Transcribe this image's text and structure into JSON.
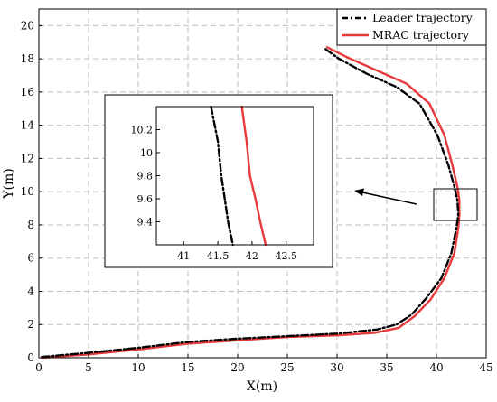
{
  "chart_data": {
    "type": "line",
    "xlabel": "X(m)",
    "ylabel": "Y(m)",
    "xlim": [
      0,
      45
    ],
    "ylim": [
      0,
      21
    ],
    "xticks": [
      0,
      5,
      10,
      15,
      20,
      25,
      30,
      35,
      40,
      45
    ],
    "yticks": [
      0,
      2,
      4,
      6,
      8,
      10,
      12,
      14,
      16,
      18,
      20
    ],
    "grid": true,
    "legend_position": "top-right",
    "series": [
      {
        "name": "Leader trajectory",
        "color": "#000000",
        "style": "dash-dot",
        "x": [
          0.3,
          5,
          10,
          15,
          20,
          25,
          30,
          34,
          36,
          37.5,
          39,
          40.5,
          41.5,
          42,
          42.2,
          42.1,
          41.8,
          41.2,
          40.1,
          38.3,
          36,
          33,
          30.2,
          28.8
        ],
        "y": [
          0.05,
          0.3,
          0.6,
          0.95,
          1.15,
          1.3,
          1.45,
          1.7,
          2.0,
          2.6,
          3.6,
          4.8,
          6.3,
          7.8,
          8.6,
          9.5,
          10.3,
          11.6,
          13.4,
          15.3,
          16.3,
          17.1,
          18.0,
          18.6
        ]
      },
      {
        "name": "MRAC trajectory",
        "color": "#e8393b",
        "style": "solid",
        "x": [
          0.3,
          5,
          10,
          15,
          20,
          25,
          30,
          33.8,
          36.2,
          37.8,
          39.4,
          40.8,
          41.8,
          42.2,
          42.3,
          42.3,
          42.1,
          41.6,
          40.8,
          39.3,
          37,
          34,
          31,
          29
        ],
        "y": [
          0.0,
          0.2,
          0.5,
          0.85,
          1.05,
          1.25,
          1.35,
          1.5,
          1.8,
          2.5,
          3.5,
          4.8,
          6.3,
          7.8,
          8.6,
          9.5,
          10.3,
          11.6,
          13.4,
          15.3,
          16.5,
          17.3,
          18.1,
          18.7
        ]
      }
    ],
    "inset": {
      "xlim": [
        40.6,
        42.9
      ],
      "ylim": [
        9.2,
        10.4
      ],
      "xticks": [
        41,
        41.5,
        42,
        42.5
      ],
      "yticks": [
        9.4,
        9.6,
        9.8,
        10,
        10.2
      ],
      "series": [
        {
          "name": "Leader trajectory",
          "x": [
            41.4,
            41.5,
            41.55,
            41.6,
            41.65,
            41.72
          ],
          "y": [
            10.4,
            10.1,
            9.8,
            9.6,
            9.4,
            9.2
          ]
        },
        {
          "name": "MRAC trajectory",
          "x": [
            41.85,
            41.92,
            41.97,
            42.05,
            42.12,
            42.2
          ],
          "y": [
            10.4,
            10.1,
            9.8,
            9.6,
            9.4,
            9.2
          ]
        }
      ]
    }
  }
}
